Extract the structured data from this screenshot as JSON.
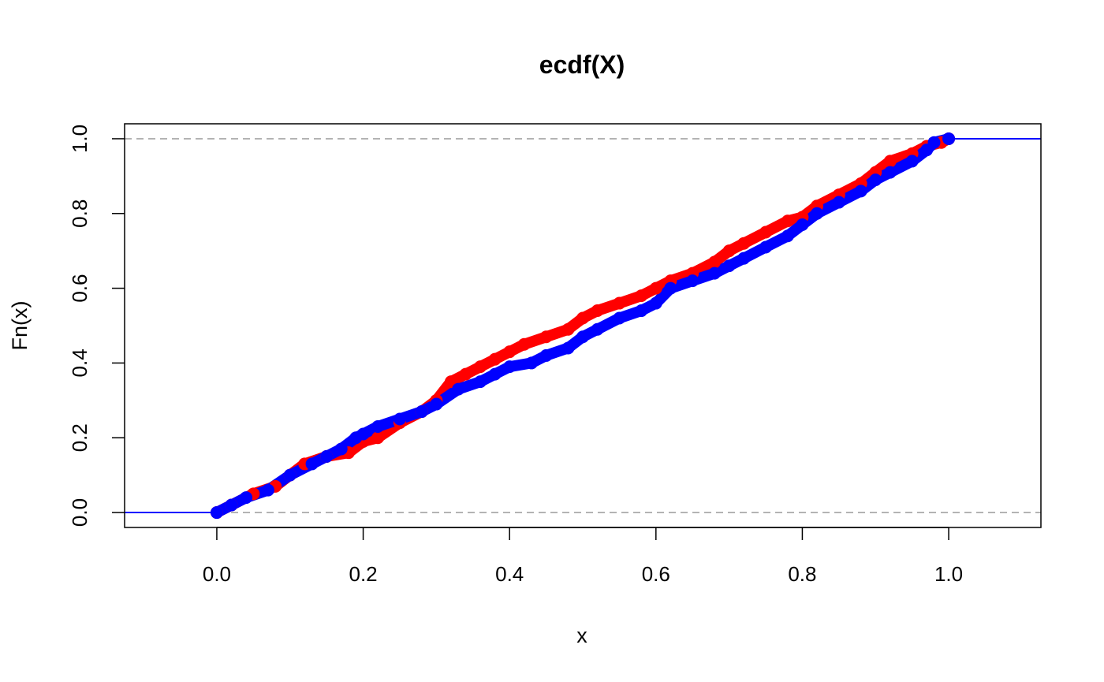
{
  "chart_data": {
    "type": "scatter",
    "title": "ecdf(X)",
    "xlabel": "x",
    "ylabel": "Fn(x)",
    "xlim": [
      -0.126,
      1.126
    ],
    "ylim": [
      -0.04,
      1.04
    ],
    "x_ticks": [
      "0.0",
      "0.2",
      "0.4",
      "0.6",
      "0.8",
      "1.0"
    ],
    "y_ticks": [
      "0.0",
      "0.2",
      "0.4",
      "0.6",
      "0.8",
      "1.0"
    ],
    "reference_lines": [
      0,
      1
    ],
    "grid": false,
    "legend": "none",
    "series": [
      {
        "color": "#ff0000",
        "x": [
          0.0,
          0.02,
          0.05,
          0.08,
          0.1,
          0.12,
          0.15,
          0.18,
          0.2,
          0.22,
          0.25,
          0.28,
          0.3,
          0.32,
          0.34,
          0.36,
          0.38,
          0.4,
          0.42,
          0.45,
          0.48,
          0.5,
          0.52,
          0.55,
          0.58,
          0.6,
          0.62,
          0.65,
          0.68,
          0.7,
          0.72,
          0.75,
          0.78,
          0.8,
          0.82,
          0.85,
          0.88,
          0.9,
          0.92,
          0.95,
          0.97,
          0.99,
          1.0
        ],
        "y": [
          0.0,
          0.02,
          0.05,
          0.07,
          0.1,
          0.13,
          0.15,
          0.16,
          0.19,
          0.2,
          0.24,
          0.27,
          0.3,
          0.35,
          0.37,
          0.39,
          0.41,
          0.43,
          0.45,
          0.47,
          0.49,
          0.52,
          0.54,
          0.56,
          0.58,
          0.6,
          0.62,
          0.64,
          0.67,
          0.7,
          0.72,
          0.75,
          0.78,
          0.79,
          0.82,
          0.85,
          0.88,
          0.91,
          0.94,
          0.96,
          0.98,
          0.99,
          1.0
        ]
      },
      {
        "color": "#0000ff",
        "x": [
          0.0,
          0.02,
          0.04,
          0.07,
          0.1,
          0.13,
          0.15,
          0.17,
          0.19,
          0.2,
          0.22,
          0.25,
          0.28,
          0.3,
          0.33,
          0.36,
          0.38,
          0.4,
          0.43,
          0.45,
          0.48,
          0.5,
          0.52,
          0.55,
          0.58,
          0.6,
          0.62,
          0.65,
          0.68,
          0.7,
          0.72,
          0.75,
          0.78,
          0.8,
          0.82,
          0.85,
          0.88,
          0.9,
          0.92,
          0.95,
          0.97,
          0.98,
          1.0
        ],
        "y": [
          0.0,
          0.02,
          0.04,
          0.06,
          0.1,
          0.13,
          0.15,
          0.17,
          0.2,
          0.21,
          0.23,
          0.25,
          0.27,
          0.29,
          0.33,
          0.35,
          0.37,
          0.39,
          0.4,
          0.42,
          0.44,
          0.47,
          0.49,
          0.52,
          0.54,
          0.56,
          0.6,
          0.62,
          0.64,
          0.66,
          0.68,
          0.71,
          0.74,
          0.77,
          0.8,
          0.83,
          0.86,
          0.89,
          0.91,
          0.94,
          0.97,
          0.99,
          1.0
        ]
      }
    ]
  }
}
